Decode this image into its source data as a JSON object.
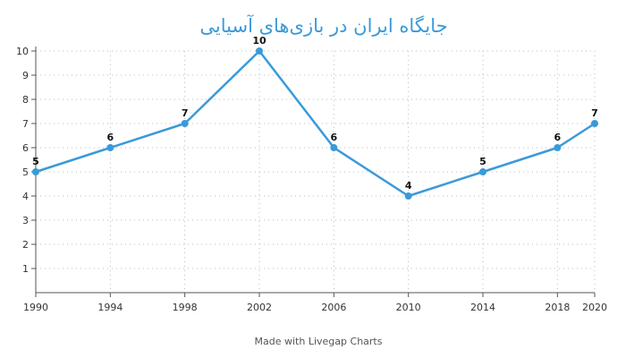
{
  "chart_data": {
    "type": "line",
    "title": "جایگاه ایران در بازی‌های آسیایی",
    "xlabel": "",
    "ylabel": "",
    "x": [
      "1990",
      "1994",
      "1998",
      "2002",
      "2006",
      "2010",
      "2014",
      "2018",
      "2020"
    ],
    "series": [
      {
        "values": [
          5,
          6,
          7,
          10,
          6,
          4,
          5,
          6,
          7
        ]
      }
    ],
    "yticks": [
      "1",
      "2",
      "3",
      "4",
      "5",
      "6",
      "7",
      "8",
      "9",
      "10"
    ],
    "ylim": [
      0,
      10
    ],
    "grid": true,
    "legend": "none",
    "line_color": "#3a9ad9",
    "grid_color": "#bbbbbb",
    "title_color": "#3a9ad9"
  },
  "footer": {
    "text": "Made with Livegap Charts"
  }
}
